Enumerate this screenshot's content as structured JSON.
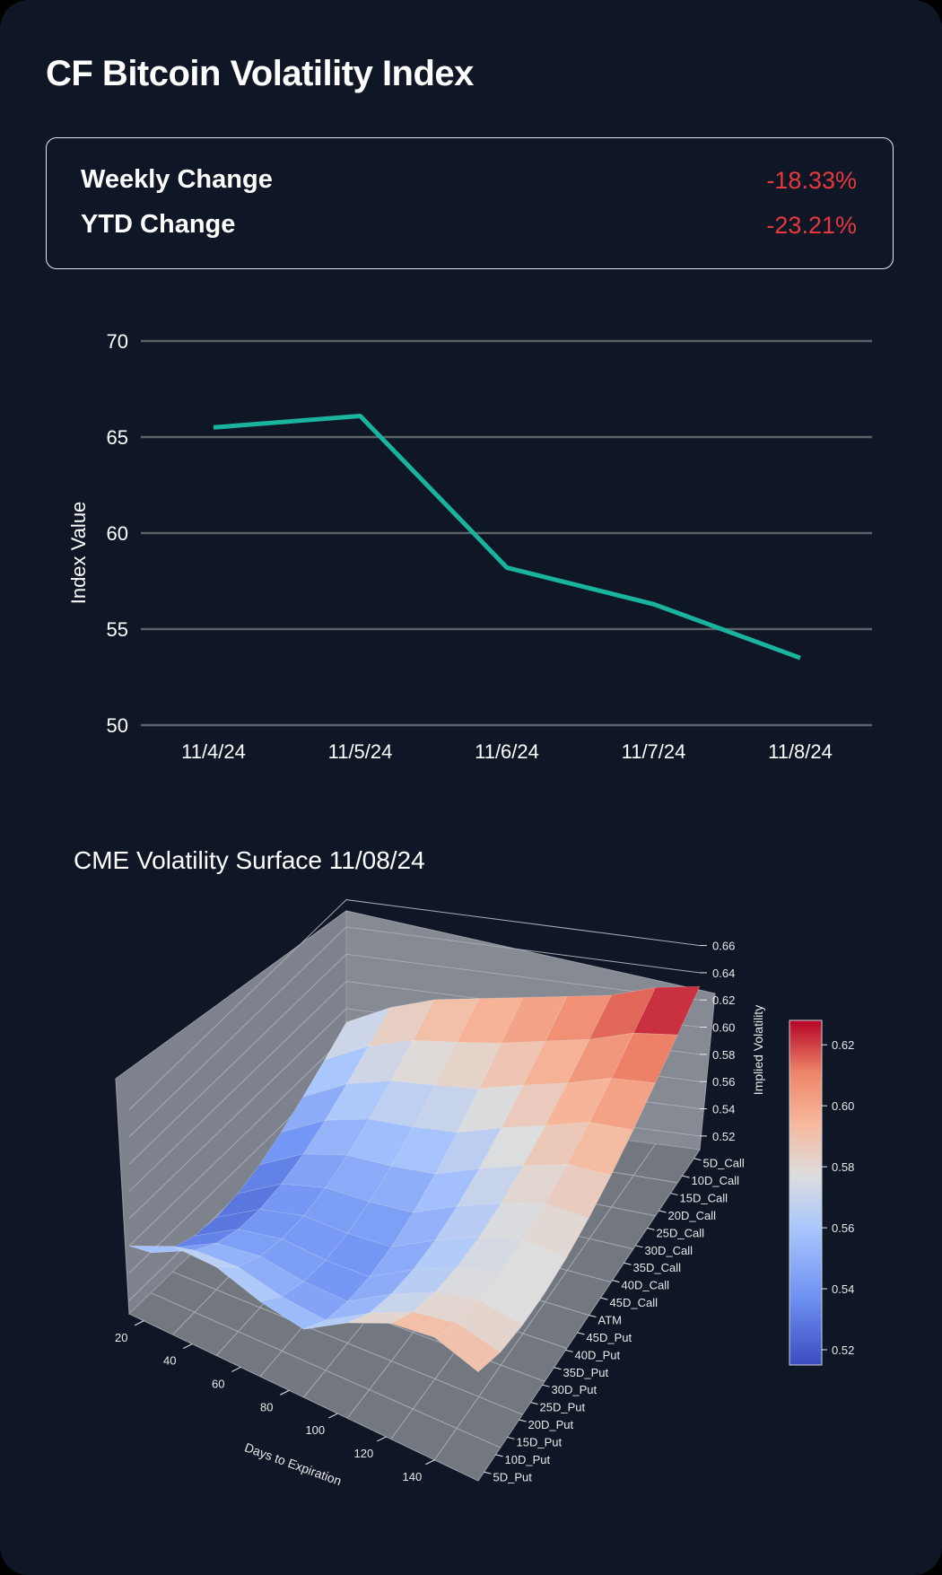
{
  "title": "CF Bitcoin Volatility Index",
  "stats": [
    {
      "label": "Weekly Change",
      "value": "-18.33%"
    },
    {
      "label": "YTD Change",
      "value": "-23.21%"
    }
  ],
  "colors": {
    "background": "#0f1726",
    "negative": "#e8383d",
    "line": "#1ab39e",
    "grid": "#5e6168"
  },
  "chart_data": [
    {
      "type": "line",
      "title": "",
      "xlabel": "",
      "ylabel": "Index Value",
      "categories": [
        "11/4/24",
        "11/5/24",
        "11/6/24",
        "11/7/24",
        "11/8/24"
      ],
      "values": [
        65.5,
        66.1,
        58.2,
        56.3,
        53.5
      ],
      "ylim": [
        50,
        70
      ],
      "yticks": [
        "50",
        "55",
        "60",
        "65",
        "70"
      ],
      "grid": true
    },
    {
      "type": "surface",
      "title": "CME Volatility Surface 11/08/24",
      "xlabel": "Days to Expiration",
      "ylabel": "",
      "zlabel": "Implied Volatility",
      "xticks": [
        "20",
        "40",
        "60",
        "80",
        "100",
        "120",
        "140"
      ],
      "yticks": [
        "5D_Call",
        "10D_Call",
        "15D_Call",
        "20D_Call",
        "25D_Call",
        "30D_Call",
        "35D_Call",
        "40D_Call",
        "45D_Call",
        "ATM",
        "45D_Put",
        "40D_Put",
        "35D_Put",
        "30D_Put",
        "25D_Put",
        "20D_Put",
        "15D_Put",
        "10D_Put",
        "5D_Put"
      ],
      "zticks": [
        "0.52",
        "0.54",
        "0.56",
        "0.58",
        "0.60",
        "0.62",
        "0.64",
        "0.66"
      ],
      "colorbar_ticks": [
        "0.52",
        "0.54",
        "0.56",
        "0.58",
        "0.60",
        "0.62"
      ],
      "colormap": "coolwarm",
      "front_edge_vol": [
        0.56,
        0.575,
        0.575,
        0.565,
        0.56,
        0.58,
        0.595,
        0.6,
        0.59
      ],
      "back_edge_vol": [
        0.57,
        0.585,
        0.595,
        0.6,
        0.605,
        0.61,
        0.615,
        0.625,
        0.63
      ]
    }
  ]
}
